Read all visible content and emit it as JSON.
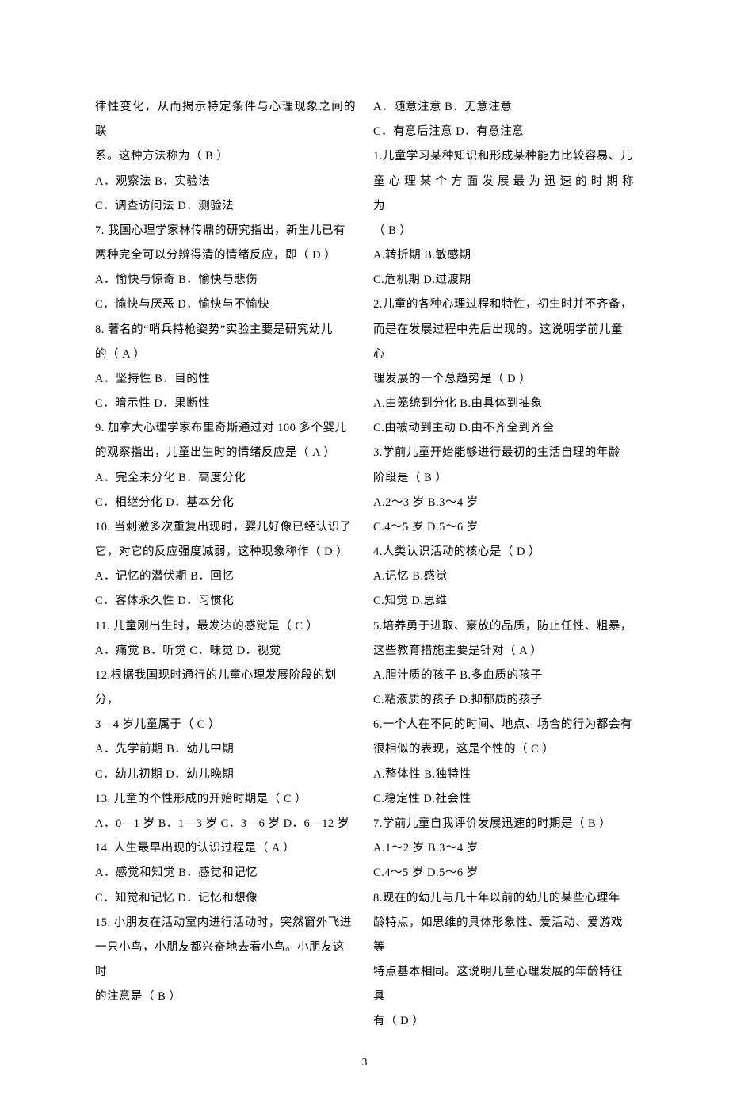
{
  "page_number": "3",
  "left": [
    {
      "t": "律性变化，从而揭示特定条件与心理现象之间的联",
      "j": true
    },
    {
      "t": "系。这种方法称为（  B    ）"
    },
    {
      "t": "A．观察法        B．实验法"
    },
    {
      "t": "C．调查访问法    D．测验法"
    },
    {
      "t": "7. 我国心理学家林传鼎的研究指出，新生儿已有"
    },
    {
      "t": "两种完全可以分辨得清的情绪反应，即（  D   ）"
    },
    {
      "t": "A．愉快与惊奇             B．愉快与悲伤"
    },
    {
      "t": "C．愉快与厌恶             D．愉快与不愉快"
    },
    {
      "t": "8. 著名的“哨兵持枪姿势”实验主要是研究幼儿"
    },
    {
      "t": "的（  A    ）"
    },
    {
      "t": "A．坚持性    B．目的性"
    },
    {
      "t": "C．暗示性    D．果断性"
    },
    {
      "t": "9. 加拿大心理学家布里奇斯通过对 100 多个婴儿"
    },
    {
      "t": "的观察指出，儿童出生时的情绪反应是（  A    ）"
    },
    {
      "t": "A．完全未分化        B．高度分化"
    },
    {
      "t": "C．相继分化          D．基本分化"
    },
    {
      "t": "10. 当刺激多次重复出现时，婴儿好像已经认识了"
    },
    {
      "t": "它，对它的反应强度减弱，这种现象称作（  D    ）"
    },
    {
      "t": "A．记忆的潜伏期        B．回忆"
    },
    {
      "t": "C．客体永久性          D．习惯化"
    },
    {
      "t": "11. 儿童刚出生时，最发达的感觉是（   C    ）"
    },
    {
      "t": "A．痛觉  B．听觉 C．味觉    D．视觉"
    },
    {
      "t": "12.根据我国现时通行的儿童心理发展阶段的划分，"
    },
    {
      "t": "3—4 岁儿童属于（  C    ）"
    },
    {
      "t": "A．先学前期              B．幼儿中期"
    },
    {
      "t": "C．幼儿初期              D．幼儿晚期"
    },
    {
      "t": "13. 儿童的个性形成的开始时期是（  C    ）"
    },
    {
      "t": "A．0—1 岁 B．1—3 岁 C．3—6 岁   D．6—12 岁"
    },
    {
      "t": "14. 人生最早出现的认识过程是（   A    ）"
    },
    {
      "t": "A．感觉和知觉        B．感觉和记忆"
    },
    {
      "t": "C．知觉和记忆        D．记忆和想像"
    },
    {
      "t": "15. 小朋友在活动室内进行活动时，突然窗外飞进"
    },
    {
      "t": "一只小鸟，小朋友都兴奋地去看小鸟。小朋友这时"
    },
    {
      "t": "的注意是（  B    ）"
    }
  ],
  "right": [
    {
      "t": "A．随意注意              B．无意注意"
    },
    {
      "t": "C．有意后注意            D．有意注意"
    },
    {
      "t": "1.儿童学习某种知识和形成某种能力比较容易、儿"
    },
    {
      "t": "童 心 理 某 个 方 面 发 展 最 为 迅 速 的 时 期 称 为",
      "j": true
    },
    {
      "t": "（  B  ）"
    },
    {
      "t": "A.转折期            B.敏感期"
    },
    {
      "t": "C.危机期            D.过渡期"
    },
    {
      "t": "2.儿童的各种心理过程和特性，初生时并不齐备，"
    },
    {
      "t": "而是在发展过程中先后出现的。这说明学前儿童心"
    },
    {
      "t": "理发展的一个总趋势是（ D  ）"
    },
    {
      "t": "A.由笼统到分化           B.由具体到抽象"
    },
    {
      "t": "C.由被动到主动           D.由不齐全到齐全"
    },
    {
      "t": "3.学前儿童开始能够进行最初的生活自理的年龄"
    },
    {
      "t": "阶段是（ B  ）"
    },
    {
      "t": "A.2～3 岁          B.3～4 岁"
    },
    {
      "t": "C.4～5 岁          D.5～6 岁"
    },
    {
      "t": "4.人类认识活动的核心是（ D  ）"
    },
    {
      "t": "A.记忆          B.感觉"
    },
    {
      "t": "C.知觉          D.思维"
    },
    {
      "t": "5.培养勇于进取、豪放的品质，防止任性、粗暴，"
    },
    {
      "t": "这些教育措施主要是针对（ A  ）"
    },
    {
      "t": "A.胆汁质的孩子            B.多血质的孩子"
    },
    {
      "t": "C.粘液质的孩子            D.抑郁质的孩子"
    },
    {
      "t": "6.一个人在不同的时间、地点、场合的行为都会有"
    },
    {
      "t": "很相似的表现，这是个性的（ C  ）"
    },
    {
      "t": "A.整体性           B.独特性"
    },
    {
      "t": "C.稳定性           D.社会性"
    },
    {
      "t": "7.学前儿童自我评价发展迅速的时期是（ B  ）"
    },
    {
      "t": "A.1～2 岁             B.3～4 岁"
    },
    {
      "t": "C.4～5 岁             D.5～6 岁"
    },
    {
      "t": "8.现在的幼儿与几十年以前的幼儿的某些心理年"
    },
    {
      "t": "龄特点，如思维的具体形象性、爱活动、爱游戏等"
    },
    {
      "t": "特点基本相同。这说明儿童心理发展的年龄特征具"
    },
    {
      "t": "有（ D  ）"
    }
  ]
}
